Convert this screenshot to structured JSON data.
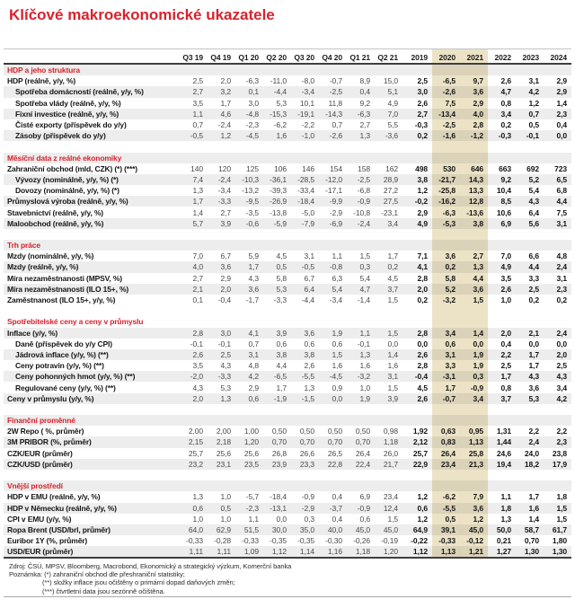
{
  "title": "Klíčové makroekonomické ukazatele",
  "colors": {
    "accent_red": "#d7232e",
    "highlight_beige": "#ece3c7"
  },
  "table": {
    "columns": [
      "Q3 19",
      "Q4 19",
      "Q1 20",
      "Q2 20",
      "Q3 20",
      "Q4 20",
      "Q1 21",
      "Q2 21",
      "2019",
      "2020",
      "2021",
      "2022",
      "2023",
      "2024"
    ],
    "highlighted_columns": [
      "2020",
      "2021"
    ],
    "sections": [
      {
        "name": "HDP a jeho struktura",
        "rows": [
          {
            "label": "HDP (reálně, y/y, %)",
            "indent": false,
            "values": [
              "2,5",
              "2,0",
              "-6,3",
              "-11,0",
              "-8,0",
              "-0,7",
              "8,9",
              "15,0",
              "2,5",
              "-6,5",
              "9,7",
              "2,6",
              "3,1",
              "2,9"
            ]
          },
          {
            "label": "Spotřeba domácností (reálně, y/y, %)",
            "indent": true,
            "values": [
              "2,7",
              "3,2",
              "0,1",
              "-4,4",
              "-3,4",
              "-2,5",
              "0,4",
              "5,1",
              "3,0",
              "-2,6",
              "3,6",
              "4,7",
              "4,2",
              "2,9"
            ]
          },
          {
            "label": "Spotřeba vlády (reálně, y/y, %)",
            "indent": true,
            "values": [
              "3,5",
              "1,7",
              "3,0",
              "5,3",
              "10,1",
              "11,8",
              "9,2",
              "4,9",
              "2,6",
              "7,5",
              "2,9",
              "0,8",
              "1,2",
              "1,4"
            ]
          },
          {
            "label": "Fixní investice (reálně, y/y, %)",
            "indent": true,
            "values": [
              "1,1",
              "4,6",
              "-4,8",
              "-15,3",
              "-19,1",
              "-14,3",
              "-6,3",
              "7,0",
              "2,7",
              "-13,4",
              "4,0",
              "3,4",
              "0,7",
              "2,3"
            ]
          },
          {
            "label": "Čisté exporty (příspěvek do y/y)",
            "indent": true,
            "values": [
              "0,7",
              "-2,4",
              "-2,3",
              "-6,2",
              "-2,2",
              "0,7",
              "2,7",
              "5,5",
              "-0,3",
              "-2,5",
              "2,8",
              "0,2",
              "0,5",
              "0,4"
            ]
          },
          {
            "label": "Zásoby (příspěvek do y/y)",
            "indent": true,
            "values": [
              "-0,5",
              "1,2",
              "-4,5",
              "1,6",
              "-1,0",
              "-2,6",
              "1,3",
              "-3,6",
              "0,2",
              "-1,6",
              "-1,2",
              "-0,3",
              "-0,1",
              "0,0"
            ]
          }
        ]
      },
      {
        "name": "Měsíční data z reálné ekonomiky",
        "rows": [
          {
            "label": "Zahraniční obchod (mld, CZK) (*) (***)",
            "indent": false,
            "values": [
              "140",
              "120",
              "125",
              "106",
              "146",
              "154",
              "158",
              "162",
              "498",
              "530",
              "646",
              "663",
              "692",
              "723"
            ]
          },
          {
            "label": "Vývozy (nominálně, y/y, %) (*)",
            "indent": true,
            "values": [
              "7,4",
              "-2,4",
              "-10,3",
              "-36,1",
              "-28,5",
              "-12,0",
              "-2,5",
              "28,9",
              "3,8",
              "-21,7",
              "14,3",
              "9,2",
              "5,2",
              "6,5"
            ]
          },
          {
            "label": "Dovozy (nominálně, y/y, %) (*)",
            "indent": true,
            "values": [
              "1,3",
              "-3,4",
              "-13,2",
              "-39,3",
              "-33,4",
              "-17,1",
              "-6,8",
              "27,2",
              "1,2",
              "-25,8",
              "13,3",
              "10,4",
              "5,4",
              "6,8"
            ]
          },
          {
            "label": "Průmyslová výroba (reálně, y/y, %)",
            "indent": false,
            "values": [
              "1,7",
              "-3,3",
              "-9,5",
              "-26,9",
              "-18,4",
              "-9,9",
              "-0,9",
              "27,5",
              "-0,2",
              "-16,2",
              "12,8",
              "8,5",
              "4,3",
              "4,4"
            ]
          },
          {
            "label": "Stavebnictví (reálně, y/y, %)",
            "indent": false,
            "values": [
              "1,4",
              "2,7",
              "-3,5",
              "-13,8",
              "-5,0",
              "-2,9",
              "-10,8",
              "-23,1",
              "2,9",
              "-6,3",
              "-13,6",
              "10,6",
              "6,4",
              "7,5"
            ]
          },
          {
            "label": "Maloobchod (reálně, y/y, %)",
            "indent": false,
            "values": [
              "5,7",
              "3,9",
              "-0,6",
              "-5,9",
              "-7,9",
              "-6,9",
              "-2,4",
              "3,4",
              "4,9",
              "-5,3",
              "3,8",
              "6,9",
              "5,6",
              "3,1"
            ]
          }
        ]
      },
      {
        "name": "Trh práce",
        "rows": [
          {
            "label": "Mzdy (nominálně, y/y, %)",
            "indent": false,
            "values": [
              "7,0",
              "6,7",
              "5,9",
              "4,5",
              "3,1",
              "1,1",
              "1,5",
              "1,7",
              "7,1",
              "3,6",
              "2,7",
              "7,0",
              "6,6",
              "4,8"
            ]
          },
          {
            "label": "Mzdy (reálně, y/y, %)",
            "indent": false,
            "values": [
              "4,0",
              "3,6",
              "1,7",
              "0,5",
              "-0,5",
              "-0,8",
              "0,3",
              "0,2",
              "4,1",
              "0,2",
              "1,3",
              "4,9",
              "4,4",
              "2,4"
            ]
          },
          {
            "label": "Míra nezaměstnanosti (MPSV, %)",
            "indent": false,
            "values": [
              "2,7",
              "2,9",
              "4,3",
              "5,8",
              "6,7",
              "6,3",
              "5,4",
              "4,5",
              "2,8",
              "5,8",
              "4,4",
              "3,5",
              "3,3",
              "3,1"
            ]
          },
          {
            "label": "Míra nezaměstnanosti (ILO 15+, %)",
            "indent": false,
            "values": [
              "2,1",
              "2,0",
              "3,6",
              "5,3",
              "6,4",
              "5,4",
              "4,7",
              "3,7",
              "2,0",
              "5,2",
              "3,6",
              "2,6",
              "2,5",
              "2,3"
            ]
          },
          {
            "label": "Zaměstnanost (ILO 15+, y/y, %)",
            "indent": false,
            "values": [
              "0,1",
              "-0,4",
              "-1,7",
              "-3,3",
              "-4,4",
              "-3,4",
              "-1,4",
              "1,5",
              "0,2",
              "-3,2",
              "1,5",
              "1,0",
              "0,2",
              "0,2"
            ]
          }
        ]
      },
      {
        "name": "Spotřebitelské ceny a ceny v průmyslu",
        "rows": [
          {
            "label": "Inflace (y/y, %)",
            "indent": false,
            "values": [
              "2,8",
              "3,0",
              "4,1",
              "3,9",
              "3,6",
              "1,9",
              "1,1",
              "1,5",
              "2,8",
              "3,4",
              "1,4",
              "2,0",
              "2,1",
              "2,4"
            ]
          },
          {
            "label": "Daně (příspěvek do y/y CPI)",
            "indent": true,
            "values": [
              "-0,1",
              "-0,1",
              "0,7",
              "0,6",
              "0,6",
              "0,6",
              "-0,1",
              "0,0",
              "0,0",
              "0,6",
              "0,0",
              "0,4",
              "0,0",
              "0,0"
            ]
          },
          {
            "label": "Jádrová inflace (y/y, %) (**)",
            "indent": true,
            "values": [
              "2,6",
              "2,5",
              "3,1",
              "3,8",
              "3,8",
              "1,5",
              "1,3",
              "1,4",
              "2,6",
              "3,1",
              "1,9",
              "2,2",
              "1,7",
              "2,0"
            ]
          },
          {
            "label": "Ceny potravin (y/y, %) (**)",
            "indent": true,
            "values": [
              "3,5",
              "4,3",
              "4,8",
              "4,4",
              "2,6",
              "1,6",
              "1,6",
              "1,6",
              "2,8",
              "3,3",
              "1,9",
              "2,5",
              "1,7",
              "2,5"
            ]
          },
          {
            "label": "Ceny pohonných hmot (y/y, %) (**)",
            "indent": true,
            "values": [
              "-2,0",
              "-3,3",
              "4,2",
              "-6,5",
              "-5,5",
              "-4,5",
              "-3,2",
              "3,1",
              "-0,4",
              "-3,1",
              "0,3",
              "1,7",
              "4,3",
              "4,3"
            ]
          },
          {
            "label": "Regulované ceny (y/y, %) (**)",
            "indent": true,
            "values": [
              "4,3",
              "5,3",
              "2,9",
              "1,7",
              "1,3",
              "0,9",
              "1,0",
              "1,5",
              "4,5",
              "1,7",
              "-0,9",
              "0,8",
              "3,6",
              "3,4"
            ]
          },
          {
            "label": "Ceny v průmyslu (y/y, %)",
            "indent": false,
            "values": [
              "2,0",
              "1,3",
              "0,6",
              "-1,9",
              "-1,5",
              "0,0",
              "1,9",
              "3,9",
              "2,6",
              "-0,7",
              "3,4",
              "3,7",
              "5,3",
              "4,2"
            ]
          }
        ]
      },
      {
        "name": "Finanční proměnné",
        "rows": [
          {
            "label": "2W Repo ( %, průměr)",
            "indent": false,
            "values": [
              "2,00",
              "2,00",
              "1,00",
              "0,50",
              "0,50",
              "0,50",
              "0,50",
              "0,98",
              "1,92",
              "0,63",
              "0,95",
              "1,31",
              "2,2",
              "2,2"
            ]
          },
          {
            "label": "3M PRIBOR (%, průměr)",
            "indent": false,
            "values": [
              "2,15",
              "2,18",
              "1,20",
              "0,70",
              "0,70",
              "0,70",
              "0,70",
              "1,18",
              "2,12",
              "0,83",
              "1,13",
              "1,44",
              "2,4",
              "2,3"
            ]
          },
          {
            "label": "CZK/EUR (průměr)",
            "indent": false,
            "values": [
              "25,7",
              "25,6",
              "25,6",
              "26,8",
              "26,6",
              "26,5",
              "26,4",
              "26,0",
              "25,7",
              "26,4",
              "25,8",
              "24,6",
              "24,0",
              "23,8"
            ]
          },
          {
            "label": "CZK/USD (průměr)",
            "indent": false,
            "values": [
              "23,2",
              "23,1",
              "23,5",
              "23,9",
              "23,3",
              "22,8",
              "22,4",
              "21,7",
              "22,9",
              "23,4",
              "21,3",
              "19,4",
              "18,2",
              "17,9"
            ]
          }
        ]
      },
      {
        "name": "Vnější prostředí",
        "rows": [
          {
            "label": "HDP v EMU (reálně, y/y, %)",
            "indent": false,
            "values": [
              "1,3",
              "1,0",
              "-5,7",
              "-18,4",
              "-0,9",
              "0,4",
              "6,9",
              "23,4",
              "1,2",
              "-6,2",
              "7,9",
              "1,1",
              "1,7",
              "1,8"
            ]
          },
          {
            "label": "HDP v Německu (reálně, y/y, %)",
            "indent": false,
            "values": [
              "0,6",
              "0,5",
              "-2,3",
              "-13,1",
              "-2,9",
              "-3,7",
              "-0,9",
              "12,4",
              "0,6",
              "-5,5",
              "3,6",
              "1,8",
              "1,6",
              "1,5"
            ]
          },
          {
            "label": "CPI v EMU (y/y, %)",
            "indent": false,
            "values": [
              "1,0",
              "1,0",
              "1,1",
              "0,0",
              "0,3",
              "0,4",
              "0,6",
              "1,5",
              "1,2",
              "0,5",
              "1,2",
              "1,3",
              "1,4",
              "1,5"
            ]
          },
          {
            "label": "Ropa Brent (USD/brl, průměr)",
            "indent": false,
            "values": [
              "64,0",
              "62,9",
              "51,5",
              "30,0",
              "35,0",
              "40,0",
              "45,0",
              "45,0",
              "64,9",
              "39,1",
              "45,0",
              "50,0",
              "58,7",
              "61,7"
            ]
          },
          {
            "label": "Euribor 1Y (%, průměr)",
            "indent": false,
            "values": [
              "-0,33",
              "-0,28",
              "-0,33",
              "-0,35",
              "-0,35",
              "-0,30",
              "-0,26",
              "-0,19",
              "-0,22",
              "-0,33",
              "-0,12",
              "0,21",
              "0,70",
              "1,80"
            ]
          },
          {
            "label": "USD/EUR (průměr)",
            "indent": false,
            "values": [
              "1,11",
              "1,11",
              "1,09",
              "1,12",
              "1,14",
              "1,16",
              "1,18",
              "1,20",
              "1,12",
              "1,13",
              "1,21",
              "1,27",
              "1,30",
              "1,30"
            ]
          }
        ]
      }
    ]
  },
  "footer": {
    "source": "Zdroj: ČSÚ, MPSV, Bloomberg, Macrobond, Ekonomický a strategický výzkum, Komerční banka",
    "note1": "Poznámka: (*) zahraniční obchod dle přeshraniční statistiky;",
    "note2": "(**) složky inflace jsou očištěny o primární dopad daňových změn;",
    "note3": "(***) čtvrtletní data jsou sezónně očištěna."
  }
}
